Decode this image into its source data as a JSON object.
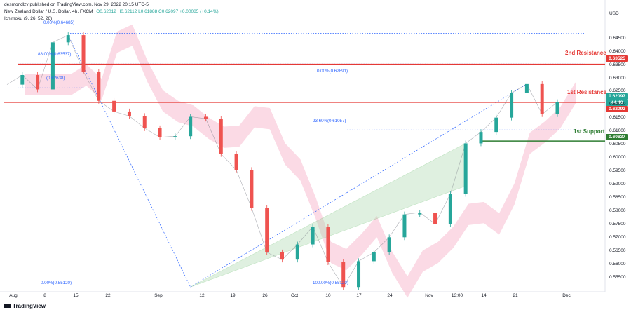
{
  "header": {
    "publisher": "desmondlzv published on TradingView.com, Nov 29, 2022 20:15 UTC-5",
    "symbol": "New Zealand Dollar / U.S. Dollar, 4h, FXCM",
    "ohlc": "O0.62012  H0.62112  L0.61888  C0.62097  +0.00085 (+0.14%)",
    "indicator": "Ichimoku (9, 26, 52, 26)"
  },
  "currency": "USD",
  "logo_text": "TradingView",
  "colors": {
    "resistance": "#e53935",
    "support": "#2e7d32",
    "fib": "#2962ff",
    "price_tag": "#26a69a",
    "bull": "#26a69a",
    "bear": "#ef5350",
    "cloud_green": "#a5d6a7",
    "cloud_red": "#f8bbd0",
    "channel": "#4caf50"
  },
  "levels": {
    "second_resistance": {
      "label": "2nd Resistance",
      "value": "0.63525"
    },
    "first_resistance": {
      "label": "1st Resistance",
      "value": "0.62097"
    },
    "first_support": {
      "label": "1st Support",
      "value": "0.60637"
    },
    "current_price": "0.62097",
    "countdown": "44:40",
    "low_tag": "0.62092"
  },
  "fib_labels": {
    "f0_top": "0.00%(0.64685)",
    "f88": "88.00%(0.63537)",
    "f_mid": "(0.62638)",
    "f0_recent": "0.00%(0.62891)",
    "f236": "23.60%(0.61057)",
    "f0_bottom": "0.00%(0.55120)",
    "f100": "100.00%(0.55120)"
  },
  "chart_data": {
    "type": "line",
    "title": "",
    "xlabel": "",
    "ylabel": "",
    "ylim": [
      0.5505,
      0.6515
    ],
    "y_ticks": [
      "0.64500",
      "0.64000",
      "0.63500",
      "0.63000",
      "0.62500",
      "0.62000",
      "0.61500",
      "0.61000",
      "0.60500",
      "0.60000",
      "0.59500",
      "0.59000",
      "0.58500",
      "0.58000",
      "0.57500",
      "0.57000",
      "0.56500",
      "0.56000",
      "0.55500"
    ],
    "x_ticks": [
      "Aug",
      "8",
      "15",
      "22",
      "Sep",
      "12",
      "19",
      "26",
      "Oct",
      "10",
      "17",
      "24",
      "Nov",
      "13:00",
      "14",
      "21",
      "Dec"
    ],
    "series": [
      {
        "x": [
          "Aug 1",
          "Aug 4",
          "Aug 8",
          "Aug 11",
          "Aug 12",
          "Aug 15",
          "Aug 18",
          "Aug 22",
          "Aug 25",
          "Aug 29",
          "Sep 1",
          "Sep 5",
          "Sep 8",
          "Sep 12",
          "Sep 15",
          "Sep 19",
          "Sep 22",
          "Sep 26",
          "Sep 29",
          "Oct 3",
          "Oct 6",
          "Oct 10",
          "Oct 13",
          "Oct 17",
          "Oct 20",
          "Oct 24",
          "Oct 27",
          "Oct 31",
          "Nov 3",
          "Nov 7",
          "Nov 10",
          "Nov 14",
          "Nov 17",
          "Nov 21",
          "Nov 24",
          "Nov 28",
          "Nov 29"
        ],
        "values": [
          0.6276,
          0.6312,
          0.6258,
          0.6435,
          0.6462,
          0.6325,
          0.6215,
          0.6175,
          0.6158,
          0.6112,
          0.6078,
          0.6082,
          0.6155,
          0.6148,
          0.6015,
          0.5955,
          0.5812,
          0.5645,
          0.5618,
          0.5675,
          0.5742,
          0.5608,
          0.5515,
          0.5612,
          0.5645,
          0.5702,
          0.5788,
          0.5795,
          0.5752,
          0.5865,
          0.6055,
          0.6098,
          0.6152,
          0.6245,
          0.6278,
          0.6165,
          0.621
        ]
      }
    ],
    "levels": [
      {
        "name": "2nd Resistance",
        "value": 0.63525
      },
      {
        "name": "1st Resistance",
        "value": 0.62097
      },
      {
        "name": "1st Support",
        "value": 0.60637
      }
    ],
    "fib": [
      0.64685,
      0.63537,
      0.62638,
      0.62891,
      0.61057,
      0.5512
    ],
    "grid": false,
    "legend": "none"
  }
}
